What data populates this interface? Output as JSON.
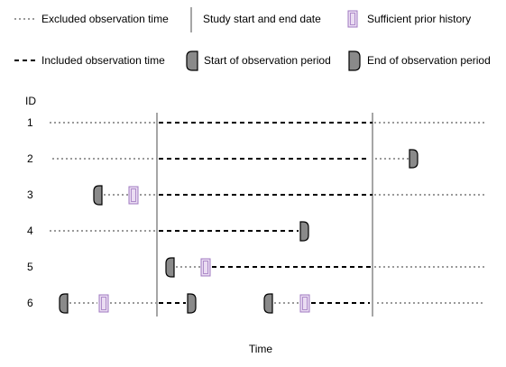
{
  "legend": {
    "excluded_observation_time": "Excluded observation time",
    "study_start_end_date": "Study start and end date",
    "sufficient_prior_history": "Sufficient prior history",
    "included_observation_time": "Included observation time",
    "start_of_observation_period": "Start of observation period",
    "end_of_observation_period": "End of observation period"
  },
  "id_header": "ID",
  "x_axis_label": "Time",
  "colors": {
    "line": "#000000",
    "dotted_line": "#9a9a9a",
    "study_boundary": "#888888",
    "marker_fill": "#8a8a8a",
    "history_fill": "#eadcf2",
    "history_stroke": "#9f78c0"
  },
  "rows": [
    {
      "id": "1"
    },
    {
      "id": "2"
    },
    {
      "id": "3"
    },
    {
      "id": "4"
    },
    {
      "id": "5"
    },
    {
      "id": "6"
    }
  ]
}
